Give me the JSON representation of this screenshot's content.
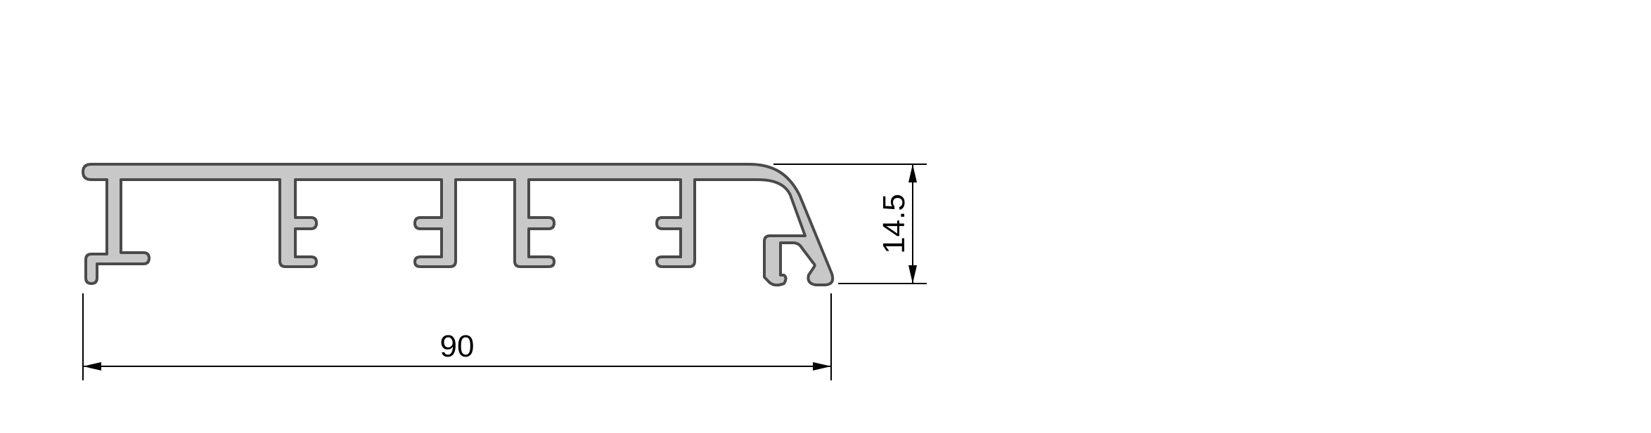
{
  "drawing": {
    "profile_fill": "#c8c8c8",
    "profile_stroke": "#4a4a4a",
    "dimension_color": "#000000"
  },
  "dimensions": {
    "width_value": "90",
    "height_value": "14.5"
  }
}
